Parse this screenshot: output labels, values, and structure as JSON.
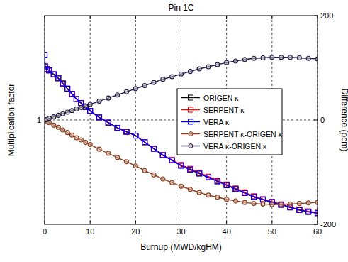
{
  "chart_data": {
    "type": "line",
    "title": "Pin 1C",
    "x_label": "Burnup (MWD/kgHM)",
    "y_label": "Multiplication factor",
    "y2_label": "Difference (pcm)",
    "x": [
      0,
      0.1,
      0.5,
      1,
      2,
      3,
      4,
      5,
      6,
      7,
      8,
      9,
      10,
      12,
      14,
      16,
      18,
      20,
      22,
      24,
      26,
      28,
      30,
      32,
      34,
      36,
      38,
      40,
      42,
      44,
      46,
      48,
      50,
      52,
      54,
      56,
      58,
      60
    ],
    "xlim": [
      0,
      60
    ],
    "xticks": [
      0,
      10,
      20,
      30,
      40,
      50,
      60
    ],
    "ylim": [
      0.6,
      1.4
    ],
    "yticks": [
      1
    ],
    "y2lim": [
      -200,
      200
    ],
    "y2ticks": [
      -200,
      0,
      200
    ],
    "grid": true,
    "legend": "right",
    "series": [
      {
        "name": "ORIGEN κ",
        "color": "#000000",
        "marker": "square",
        "line_style": "solid",
        "values": [
          1.25,
          1.205,
          1.195,
          1.19,
          1.175,
          1.16,
          1.14,
          1.12,
          1.1,
          1.08,
          1.065,
          1.05,
          1.035,
          1.01,
          0.99,
          0.97,
          0.955,
          0.94,
          0.915,
          0.89,
          0.865,
          0.845,
          0.825,
          0.81,
          0.795,
          0.78,
          0.765,
          0.75,
          0.735,
          0.72,
          0.705,
          0.695,
          0.685,
          0.675,
          0.665,
          0.655,
          0.648,
          0.643
        ]
      },
      {
        "name": "SERPENT κ",
        "color": "#ff0000",
        "marker": "square",
        "line_style": "solid",
        "values": [
          1.25,
          1.205,
          1.195,
          1.19,
          1.175,
          1.16,
          1.14,
          1.12,
          1.1,
          1.08,
          1.065,
          1.05,
          1.035,
          1.01,
          0.99,
          0.97,
          0.955,
          0.94,
          0.915,
          0.89,
          0.866,
          0.847,
          0.828,
          0.813,
          0.798,
          0.783,
          0.768,
          0.753,
          0.738,
          0.723,
          0.708,
          0.697,
          0.687,
          0.677,
          0.667,
          0.657,
          0.65,
          0.645
        ]
      },
      {
        "name": "VERA κ",
        "color": "#0000ff",
        "marker": "square",
        "line_style": "solid",
        "values": [
          1.25,
          1.205,
          1.195,
          1.19,
          1.175,
          1.16,
          1.14,
          1.12,
          1.1,
          1.08,
          1.065,
          1.05,
          1.035,
          1.01,
          0.99,
          0.97,
          0.955,
          0.94,
          0.915,
          0.89,
          0.865,
          0.845,
          0.825,
          0.81,
          0.795,
          0.78,
          0.765,
          0.75,
          0.735,
          0.72,
          0.705,
          0.695,
          0.685,
          0.675,
          0.665,
          0.655,
          0.648,
          0.643
        ]
      },
      {
        "name": "SERPENT κ-ORIGEN κ",
        "color": "#8b3a1a",
        "marker": "circle",
        "line_style": "solid",
        "axis": "y2",
        "values": [
          0,
          -1,
          -3,
          -5,
          -10,
          -14,
          -19,
          -24,
          -29,
          -34,
          -38,
          -43,
          -47,
          -56,
          -64,
          -72,
          -80,
          -88,
          -97,
          -105,
          -113,
          -120,
          -127,
          -133,
          -139,
          -144,
          -148,
          -152,
          -155,
          -158,
          -160,
          -161,
          -162,
          -162,
          -161,
          -160,
          -159,
          -158
        ]
      },
      {
        "name": "VERA κ-ORIGEN κ",
        "color": "#1c1c50",
        "marker": "circle",
        "line_style": "solid",
        "axis": "y2",
        "values": [
          0,
          0.5,
          1,
          3,
          6,
          9,
          12,
          15,
          18,
          21,
          24,
          27,
          30,
          36,
          42,
          48,
          54,
          60,
          66,
          72,
          78,
          83,
          88,
          93,
          98,
          102,
          106,
          110,
          113,
          116,
          118,
          119,
          120,
          120,
          120,
          119,
          118,
          117
        ]
      }
    ]
  }
}
